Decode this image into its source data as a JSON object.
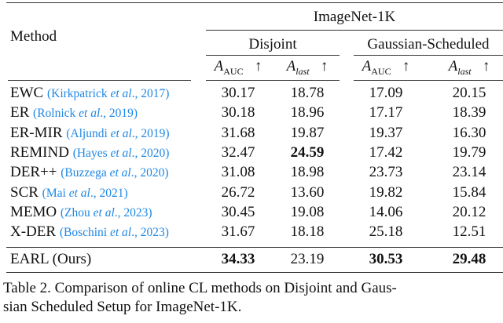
{
  "header": {
    "method": "Method",
    "dataset": "ImageNet-1K",
    "groups": [
      "Disjoint",
      "Gaussian-Scheduled"
    ],
    "metrics": [
      {
        "base": "A",
        "sub": "AUC",
        "arrow": "↑"
      },
      {
        "base": "A",
        "sub": "last",
        "arrow": "↑"
      }
    ]
  },
  "rows": [
    {
      "method": "EWC",
      "cite_pre": "(Kirkpatrick ",
      "cite_etal": "et al",
      "cite_post": "., 2017)",
      "values": [
        "30.17",
        "18.78",
        "17.09",
        "20.15"
      ],
      "bold": [
        false,
        false,
        false,
        false
      ]
    },
    {
      "method": "ER",
      "cite_pre": "(Rolnick ",
      "cite_etal": "et al",
      "cite_post": "., 2019)",
      "values": [
        "30.18",
        "18.96",
        "17.17",
        "18.39"
      ],
      "bold": [
        false,
        false,
        false,
        false
      ]
    },
    {
      "method": "ER-MIR",
      "cite_pre": "(Aljundi ",
      "cite_etal": "et al",
      "cite_post": "., 2019)",
      "values": [
        "31.68",
        "19.87",
        "19.37",
        "16.30"
      ],
      "bold": [
        false,
        false,
        false,
        false
      ]
    },
    {
      "method": "REMIND",
      "cite_pre": "(Hayes ",
      "cite_etal": "et al",
      "cite_post": "., 2020)",
      "values": [
        "32.47",
        "24.59",
        "17.42",
        "19.79"
      ],
      "bold": [
        false,
        true,
        false,
        false
      ]
    },
    {
      "method": "DER++",
      "cite_pre": "(Buzzega ",
      "cite_etal": "et al",
      "cite_post": "., 2020)",
      "values": [
        "31.08",
        "18.98",
        "23.73",
        "23.14"
      ],
      "bold": [
        false,
        false,
        false,
        false
      ]
    },
    {
      "method": "SCR",
      "cite_pre": "(Mai ",
      "cite_etal": "et al",
      "cite_post": "., 2021)",
      "values": [
        "26.72",
        "13.60",
        "19.82",
        "15.84"
      ],
      "bold": [
        false,
        false,
        false,
        false
      ]
    },
    {
      "method": "MEMO",
      "cite_pre": "(Zhou ",
      "cite_etal": "et al",
      "cite_post": "., 2023)",
      "values": [
        "30.45",
        "19.08",
        "14.06",
        "20.12"
      ],
      "bold": [
        false,
        false,
        false,
        false
      ]
    },
    {
      "method": "X-DER",
      "cite_pre": "(Boschini ",
      "cite_etal": "et al",
      "cite_post": "., 2023)",
      "values": [
        "31.67",
        "18.18",
        "25.18",
        "12.51"
      ],
      "bold": [
        false,
        false,
        false,
        false
      ]
    }
  ],
  "ours": {
    "method": "EARL (Ours)",
    "values": [
      "34.33",
      "23.19",
      "30.53",
      "29.48"
    ],
    "bold": [
      true,
      false,
      true,
      true
    ]
  },
  "caption": {
    "line1": "Table 2. Comparison of online CL methods on Disjoint and Gaus-",
    "line2": "sian Scheduled Setup for ImageNet-1K."
  }
}
